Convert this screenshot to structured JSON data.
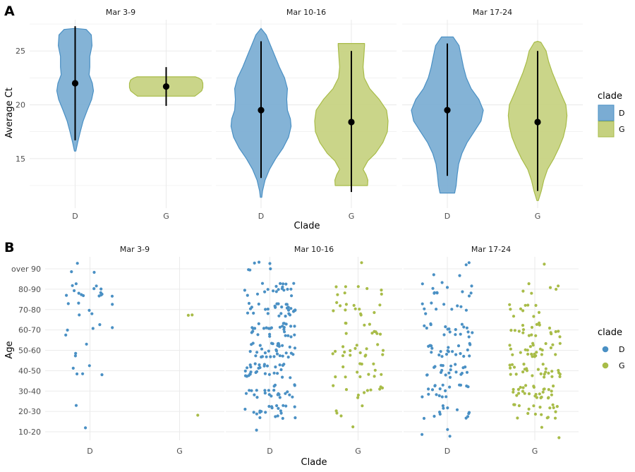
{
  "colors": {
    "D": "#4a90c4",
    "G": "#a8bc48",
    "D_fill": "#7aacd3",
    "G_fill": "#c5d17f",
    "grid": "#ebebeb",
    "point": "#000000"
  },
  "chart_data": [
    {
      "tag": "A",
      "type": "violin",
      "xlabel": "Clade",
      "ylabel": "Average Ct",
      "ylim": [
        10.4,
        27.9
      ],
      "yticks": [
        15,
        20,
        25
      ],
      "panels": [
        {
          "title": "Mar 3-9",
          "categories": [
            "D",
            "G"
          ],
          "groups": [
            {
              "clade": "D",
              "mean": 22.0,
              "range": [
                16.7,
                27.3
              ],
              "profile": [
                [
                  15.7,
                  0.02
                ],
                [
                  16.5,
                  0.07
                ],
                [
                  17.5,
                  0.14
                ],
                [
                  18.5,
                  0.22
                ],
                [
                  19.5,
                  0.33
                ],
                [
                  20.5,
                  0.45
                ],
                [
                  21.3,
                  0.5
                ],
                [
                  22.0,
                  0.47
                ],
                [
                  22.8,
                  0.38
                ],
                [
                  23.5,
                  0.4
                ],
                [
                  24.5,
                  0.4
                ],
                [
                  25.5,
                  0.46
                ],
                [
                  26.5,
                  0.44
                ],
                [
                  27.0,
                  0.3
                ],
                [
                  27.1,
                  0.0
                ]
              ]
            },
            {
              "clade": "G",
              "mean": 21.7,
              "range": [
                19.9,
                23.5
              ],
              "profile": [
                [
                  20.8,
                  0.78
                ],
                [
                  21.0,
                  0.86
                ],
                [
                  21.3,
                  0.97
                ],
                [
                  21.6,
                  1.0
                ],
                [
                  22.0,
                  1.0
                ],
                [
                  22.3,
                  0.97
                ],
                [
                  22.5,
                  0.88
                ],
                [
                  22.6,
                  0.8
                ]
              ]
            }
          ]
        },
        {
          "title": "Mar 10-16",
          "categories": [
            "D",
            "G"
          ],
          "groups": [
            {
              "clade": "D",
              "mean": 19.5,
              "range": [
                13.2,
                25.9
              ],
              "profile": [
                [
                  11.4,
                  0.02
                ],
                [
                  12.0,
                  0.04
                ],
                [
                  13.0,
                  0.11
                ],
                [
                  14.0,
                  0.23
                ],
                [
                  15.0,
                  0.4
                ],
                [
                  16.0,
                  0.6
                ],
                [
                  17.0,
                  0.75
                ],
                [
                  18.0,
                  0.82
                ],
                [
                  18.7,
                  0.8
                ],
                [
                  19.5,
                  0.72
                ],
                [
                  20.5,
                  0.7
                ],
                [
                  21.5,
                  0.72
                ],
                [
                  22.5,
                  0.64
                ],
                [
                  23.5,
                  0.5
                ],
                [
                  24.5,
                  0.38
                ],
                [
                  25.5,
                  0.26
                ],
                [
                  26.5,
                  0.14
                ],
                [
                  27.1,
                  0.0
                ]
              ]
            },
            {
              "clade": "G",
              "mean": 18.4,
              "range": [
                11.9,
                25.0
              ],
              "profile": [
                [
                  12.5,
                  0.44
                ],
                [
                  13.0,
                  0.45
                ],
                [
                  13.5,
                  0.4
                ],
                [
                  14.0,
                  0.32
                ],
                [
                  14.8,
                  0.45
                ],
                [
                  15.5,
                  0.66
                ],
                [
                  16.5,
                  0.86
                ],
                [
                  17.5,
                  0.98
                ],
                [
                  18.5,
                  1.0
                ],
                [
                  19.5,
                  0.96
                ],
                [
                  20.5,
                  0.76
                ],
                [
                  21.5,
                  0.5
                ],
                [
                  22.5,
                  0.35
                ],
                [
                  23.5,
                  0.32
                ],
                [
                  24.5,
                  0.34
                ],
                [
                  25.5,
                  0.36
                ],
                [
                  25.7,
                  0.36
                ]
              ]
            }
          ]
        },
        {
          "title": "Mar 17-24",
          "categories": [
            "D",
            "G"
          ],
          "groups": [
            {
              "clade": "D",
              "mean": 19.5,
              "range": [
                13.4,
                25.7
              ],
              "profile": [
                [
                  11.8,
                  0.2
                ],
                [
                  12.5,
                  0.24
                ],
                [
                  13.5,
                  0.27
                ],
                [
                  14.5,
                  0.31
                ],
                [
                  15.5,
                  0.4
                ],
                [
                  16.5,
                  0.54
                ],
                [
                  17.5,
                  0.73
                ],
                [
                  18.5,
                  0.92
                ],
                [
                  19.5,
                  0.98
                ],
                [
                  20.5,
                  0.86
                ],
                [
                  21.5,
                  0.65
                ],
                [
                  22.5,
                  0.52
                ],
                [
                  23.5,
                  0.44
                ],
                [
                  24.5,
                  0.38
                ],
                [
                  25.5,
                  0.32
                ],
                [
                  26.3,
                  0.16
                ]
              ]
            },
            {
              "clade": "G",
              "mean": 18.4,
              "range": [
                12.0,
                25.0
              ],
              "profile": [
                [
                  11.1,
                  0.02
                ],
                [
                  12.0,
                  0.1
                ],
                [
                  13.0,
                  0.17
                ],
                [
                  14.0,
                  0.27
                ],
                [
                  15.0,
                  0.44
                ],
                [
                  16.0,
                  0.58
                ],
                [
                  17.0,
                  0.7
                ],
                [
                  18.0,
                  0.77
                ],
                [
                  19.0,
                  0.8
                ],
                [
                  20.0,
                  0.77
                ],
                [
                  21.0,
                  0.64
                ],
                [
                  22.0,
                  0.52
                ],
                [
                  23.0,
                  0.4
                ],
                [
                  24.0,
                  0.3
                ],
                [
                  25.0,
                  0.23
                ],
                [
                  25.8,
                  0.09
                ],
                [
                  25.9,
                  0.0
                ]
              ]
            }
          ]
        }
      ]
    },
    {
      "tag": "B",
      "type": "scatter",
      "jitter": true,
      "xlabel": "Clade",
      "ylabel": "Age",
      "yticks": [
        "10-20",
        "20-30",
        "30-40",
        "40-50",
        "50-60",
        "60-70",
        "70-80",
        "80-90",
        "over 90"
      ],
      "panels": [
        {
          "title": "Mar 3-9",
          "categories": [
            "D",
            "G"
          ],
          "counts": {
            "D": [
              1,
              1,
              0,
              5,
              3,
              5,
              6,
              15,
              3
            ],
            "G": [
              0,
              1,
              0,
              0,
              0,
              0,
              2,
              0,
              0
            ]
          }
        },
        {
          "title": "Mar 10-16",
          "categories": [
            "D",
            "G"
          ],
          "counts": {
            "D": [
              1,
              22,
              24,
              30,
              34,
              28,
              30,
              20,
              6
            ],
            "G": [
              1,
              4,
              10,
              12,
              16,
              10,
              12,
              8,
              1
            ]
          }
        },
        {
          "title": "Mar 17-24",
          "categories": [
            "D",
            "G"
          ],
          "counts": {
            "D": [
              3,
              12,
              18,
              20,
              22,
              18,
              10,
              12,
              4
            ],
            "G": [
              2,
              18,
              28,
              26,
              24,
              20,
              10,
              6,
              1
            ]
          }
        }
      ]
    }
  ],
  "legend": {
    "title": "clade",
    "entries": [
      "D",
      "G"
    ]
  }
}
